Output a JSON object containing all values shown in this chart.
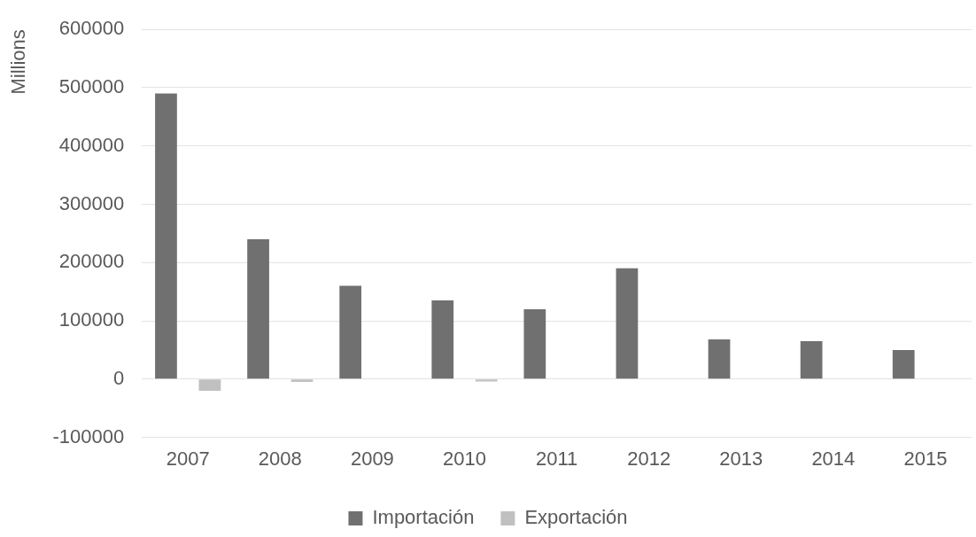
{
  "chart_data": {
    "type": "bar",
    "ylabel": "Millions",
    "categories": [
      "2007",
      "2008",
      "2009",
      "2010",
      "2011",
      "2012",
      "2013",
      "2014",
      "2015"
    ],
    "series": [
      {
        "name": "Importación",
        "color": "#707070",
        "values": [
          490000,
          240000,
          160000,
          135000,
          120000,
          190000,
          68000,
          65000,
          50000
        ]
      },
      {
        "name": "Exportación",
        "color": "#c0c0c0",
        "values": [
          -20000,
          -5000,
          0,
          -4000,
          0,
          0,
          0,
          0,
          0
        ]
      }
    ],
    "ylim": [
      -100000,
      600000
    ],
    "yticks": [
      -100000,
      0,
      100000,
      200000,
      300000,
      400000,
      500000,
      600000
    ],
    "grid": "y",
    "legend": "bottom"
  }
}
